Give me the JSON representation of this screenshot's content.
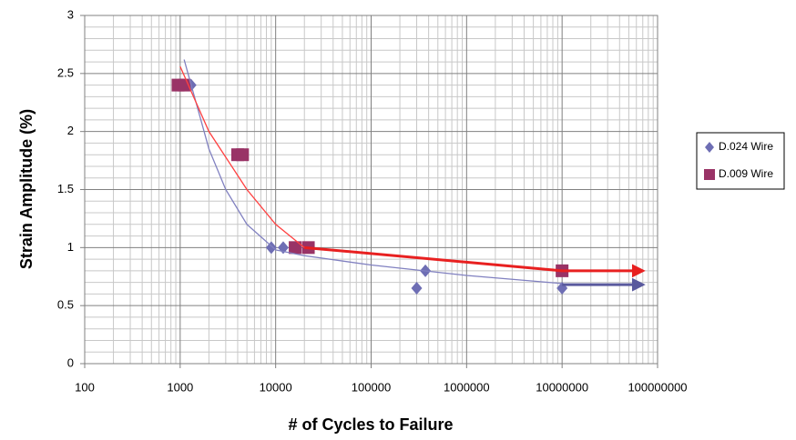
{
  "chart_data": {
    "type": "scatter",
    "xlabel": "# of Cycles to Failure",
    "ylabel": "Strain Amplitude (%)",
    "xscale": "log",
    "xlim": [
      100,
      100000000
    ],
    "xticks": [
      100,
      1000,
      10000,
      100000,
      1000000,
      10000000,
      100000000
    ],
    "ylim": [
      0,
      3
    ],
    "yticks": [
      0,
      0.5,
      1,
      1.5,
      2,
      2.5,
      3
    ],
    "grid": true,
    "minor_grid": true,
    "legend": "right",
    "series": [
      {
        "name": "D.024 Wire",
        "color": "#6e6eb4",
        "marker": "diamond",
        "x": [
          1000,
          1300,
          9000,
          12000,
          300000,
          370000,
          10000000,
          10000000
        ],
        "values": [
          2.4,
          2.4,
          1.0,
          1.0,
          0.65,
          0.8,
          0.8,
          0.65
        ],
        "trend": {
          "color": "#8080c0",
          "x": [
            1100,
            2000,
            3000,
            5000,
            10000,
            20000,
            100000,
            1000000,
            10000000
          ],
          "values": [
            2.62,
            1.85,
            1.5,
            1.2,
            0.98,
            0.93,
            0.85,
            0.76,
            0.69
          ]
        },
        "arrow": {
          "color": "#5a5a9e",
          "x": [
            10000000,
            70000000
          ],
          "values": [
            0.68,
            0.68
          ]
        }
      },
      {
        "name": "D.009 Wire",
        "color": "#993366",
        "marker": "square",
        "x": [
          950,
          1100,
          4000,
          4500,
          16000,
          22000,
          10000000
        ],
        "values": [
          2.4,
          2.4,
          1.8,
          1.8,
          1.0,
          1.0,
          0.8
        ],
        "trend": {
          "color": "#ff4040",
          "x": [
            1000,
            2000,
            5000,
            10000,
            20000
          ],
          "values": [
            2.56,
            2.0,
            1.5,
            1.2,
            1.0
          ]
        },
        "arrow": {
          "color": "#e82020",
          "x": [
            20000,
            10000000,
            70000000
          ],
          "values": [
            1.0,
            0.8,
            0.8
          ]
        }
      }
    ]
  }
}
